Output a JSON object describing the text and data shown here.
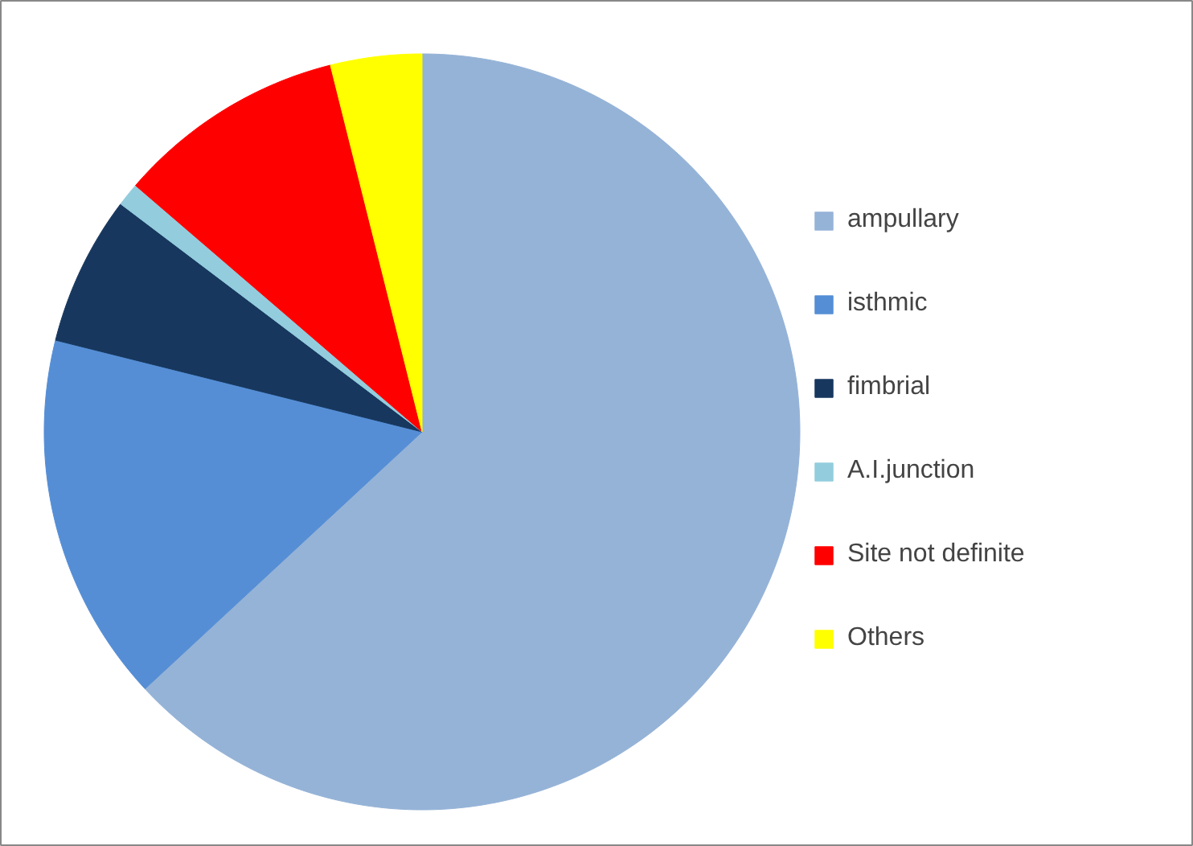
{
  "chart_data": {
    "type": "pie",
    "categories": [
      "ampullary",
      "isthmic",
      "fimbrial",
      "A.I.junction",
      "Site not definite",
      "Others"
    ],
    "values": [
      63.1,
      15.8,
      6.4,
      1.0,
      9.8,
      3.9
    ],
    "colors": [
      "#95b3d7",
      "#558ed5",
      "#17375e",
      "#93cddd",
      "#ff0000",
      "#ffff00"
    ],
    "legend": "right"
  }
}
